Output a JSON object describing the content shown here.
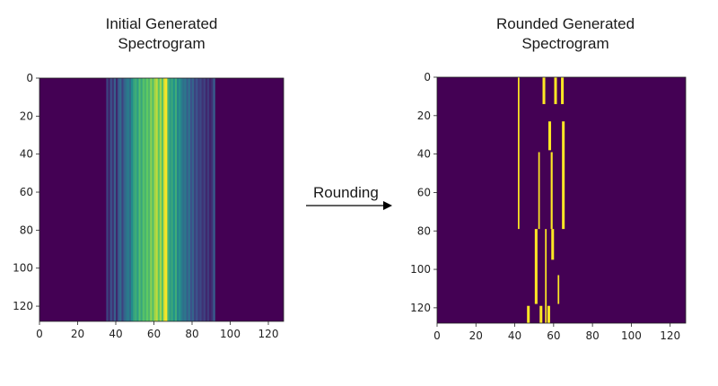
{
  "captions": {
    "left": [
      "Initial Generated",
      "Spectrogram"
    ],
    "right": [
      "Rounded Generated",
      "Spectrogram"
    ]
  },
  "arrow": {
    "label": "Rounding"
  },
  "colors": {
    "background": "#440154",
    "highlight": "#fde725",
    "mid_green": "#35b779",
    "teal": "#21918c",
    "blue": "#31688e",
    "indigo": "#443983"
  },
  "chart_data": [
    {
      "type": "heatmap",
      "title": "Initial Generated Spectrogram",
      "xlim": [
        0,
        128
      ],
      "ylim": [
        128,
        0
      ],
      "x_ticks": [
        0,
        20,
        40,
        60,
        80,
        100,
        120
      ],
      "y_ticks": [
        0,
        20,
        40,
        60,
        80,
        100,
        120
      ],
      "colormap": "viridis",
      "columns": [
        {
          "x0": 35,
          "x1": 36,
          "v": 0.2
        },
        {
          "x0": 36,
          "x1": 37,
          "v": 0.1
        },
        {
          "x0": 37,
          "x1": 38,
          "v": 0.25
        },
        {
          "x0": 38,
          "x1": 39,
          "v": 0.15
        },
        {
          "x0": 39,
          "x1": 40,
          "v": 0.3
        },
        {
          "x0": 40,
          "x1": 41,
          "v": 0.12
        },
        {
          "x0": 41,
          "x1": 42,
          "v": 0.28
        },
        {
          "x0": 42,
          "x1": 43,
          "v": 0.35
        },
        {
          "x0": 43,
          "x1": 44,
          "v": 0.2
        },
        {
          "x0": 44,
          "x1": 45,
          "v": 0.32
        },
        {
          "x0": 45,
          "x1": 46,
          "v": 0.38
        },
        {
          "x0": 46,
          "x1": 47,
          "v": 0.42
        },
        {
          "x0": 47,
          "x1": 48,
          "v": 0.35
        },
        {
          "x0": 48,
          "x1": 49,
          "v": 0.48
        },
        {
          "x0": 49,
          "x1": 50,
          "v": 0.58
        },
        {
          "x0": 50,
          "x1": 51,
          "v": 0.62
        },
        {
          "x0": 51,
          "x1": 52,
          "v": 0.55
        },
        {
          "x0": 52,
          "x1": 53,
          "v": 0.7
        },
        {
          "x0": 53,
          "x1": 54,
          "v": 0.6
        },
        {
          "x0": 54,
          "x1": 55,
          "v": 0.72
        },
        {
          "x0": 55,
          "x1": 56,
          "v": 0.66
        },
        {
          "x0": 56,
          "x1": 57,
          "v": 0.75
        },
        {
          "x0": 57,
          "x1": 58,
          "v": 0.68
        },
        {
          "x0": 58,
          "x1": 59,
          "v": 0.82
        },
        {
          "x0": 59,
          "x1": 60,
          "v": 0.7
        },
        {
          "x0": 60,
          "x1": 61,
          "v": 0.85
        },
        {
          "x0": 61,
          "x1": 62,
          "v": 0.9
        },
        {
          "x0": 62,
          "x1": 63,
          "v": 0.74
        },
        {
          "x0": 63,
          "x1": 64,
          "v": 0.86
        },
        {
          "x0": 64,
          "x1": 65,
          "v": 0.72
        },
        {
          "x0": 65,
          "x1": 66,
          "v": 0.95
        },
        {
          "x0": 66,
          "x1": 67,
          "v": 1.0
        },
        {
          "x0": 67,
          "x1": 68,
          "v": 0.65
        },
        {
          "x0": 68,
          "x1": 69,
          "v": 0.55
        },
        {
          "x0": 69,
          "x1": 70,
          "v": 0.6
        },
        {
          "x0": 70,
          "x1": 71,
          "v": 0.5
        },
        {
          "x0": 71,
          "x1": 72,
          "v": 0.62
        },
        {
          "x0": 72,
          "x1": 73,
          "v": 0.45
        },
        {
          "x0": 73,
          "x1": 74,
          "v": 0.52
        },
        {
          "x0": 74,
          "x1": 75,
          "v": 0.42
        },
        {
          "x0": 75,
          "x1": 76,
          "v": 0.36
        },
        {
          "x0": 76,
          "x1": 77,
          "v": 0.4
        },
        {
          "x0": 77,
          "x1": 78,
          "v": 0.3
        },
        {
          "x0": 78,
          "x1": 79,
          "v": 0.38
        },
        {
          "x0": 79,
          "x1": 80,
          "v": 0.25
        },
        {
          "x0": 80,
          "x1": 81,
          "v": 0.32
        },
        {
          "x0": 81,
          "x1": 82,
          "v": 0.2
        },
        {
          "x0": 82,
          "x1": 83,
          "v": 0.26
        },
        {
          "x0": 83,
          "x1": 84,
          "v": 0.18
        },
        {
          "x0": 84,
          "x1": 85,
          "v": 0.22
        },
        {
          "x0": 85,
          "x1": 86,
          "v": 0.15
        },
        {
          "x0": 86,
          "x1": 87,
          "v": 0.2
        },
        {
          "x0": 87,
          "x1": 88,
          "v": 0.12
        },
        {
          "x0": 88,
          "x1": 89,
          "v": 0.18
        },
        {
          "x0": 89,
          "x1": 90,
          "v": 0.1
        },
        {
          "x0": 90,
          "x1": 91,
          "v": 0.15
        },
        {
          "x0": 91,
          "x1": 92,
          "v": 0.28
        }
      ]
    },
    {
      "type": "heatmap",
      "title": "Rounded Generated Spectrogram",
      "xlim": [
        0,
        128
      ],
      "ylim": [
        128,
        0
      ],
      "x_ticks": [
        0,
        20,
        40,
        60,
        80,
        100,
        120
      ],
      "y_ticks": [
        0,
        20,
        40,
        60,
        80,
        100,
        120
      ],
      "colormap": "binary (0 = purple, 1 = yellow)",
      "segments": [
        {
          "x": 42,
          "y0": 0,
          "y1": 79,
          "w": 0.8
        },
        {
          "x": 55,
          "y0": 0,
          "y1": 14,
          "w": 1.4
        },
        {
          "x": 61,
          "y0": 0,
          "y1": 14,
          "w": 1.4
        },
        {
          "x": 64.5,
          "y0": 0,
          "y1": 14,
          "w": 1.4
        },
        {
          "x": 58,
          "y0": 23,
          "y1": 38,
          "w": 1.4
        },
        {
          "x": 65,
          "y0": 23,
          "y1": 79,
          "w": 1.4
        },
        {
          "x": 52.5,
          "y0": 39,
          "y1": 79,
          "w": 0.8
        },
        {
          "x": 59,
          "y0": 39,
          "y1": 79,
          "w": 1.0
        },
        {
          "x": 56,
          "y0": 79,
          "y1": 128,
          "w": 0.8
        },
        {
          "x": 59.5,
          "y0": 79,
          "y1": 95,
          "w": 1.4
        },
        {
          "x": 51,
          "y0": 79,
          "y1": 118,
          "w": 1.4
        },
        {
          "x": 62.5,
          "y0": 103,
          "y1": 118,
          "w": 0.8
        },
        {
          "x": 47,
          "y0": 119,
          "y1": 128,
          "w": 1.4
        },
        {
          "x": 53.5,
          "y0": 119,
          "y1": 128,
          "w": 1.4
        },
        {
          "x": 57.5,
          "y0": 119,
          "y1": 128,
          "w": 1.4
        }
      ]
    }
  ]
}
